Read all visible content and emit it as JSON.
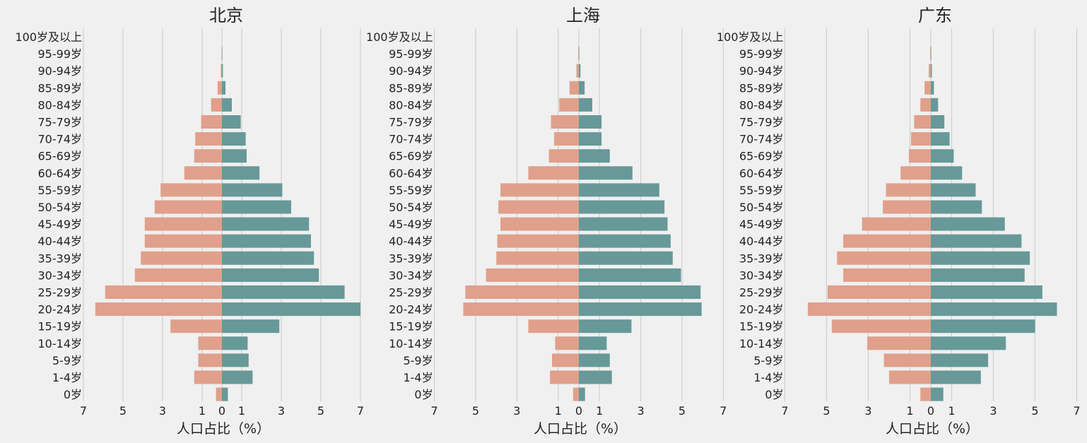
{
  "chart_data": [
    {
      "type": "bar",
      "orientation": "horizontal-diverging",
      "title": "北京",
      "xlabel": "人口占比（%）",
      "categories": [
        "0岁",
        "1-4岁",
        "5-9岁",
        "10-14岁",
        "15-19岁",
        "20-24岁",
        "25-29岁",
        "30-34岁",
        "35-39岁",
        "40-44岁",
        "45-49岁",
        "50-54岁",
        "55-59岁",
        "60-64岁",
        "65-69岁",
        "70-74岁",
        "75-79岁",
        "80-84岁",
        "85-89岁",
        "90-94岁",
        "95-99岁",
        "100岁及以上"
      ],
      "xlim": [
        -7,
        7
      ],
      "x_ticks": [
        -7,
        -5,
        -3,
        -1,
        0,
        1,
        3,
        5,
        7
      ],
      "x_tick_labels": [
        "7",
        "5",
        "3",
        "1",
        "0",
        "1",
        "3",
        "5",
        "7"
      ],
      "grid": true,
      "series": [
        {
          "color": "#e0a08b",
          "side": "left",
          "values": [
            0.3,
            1.4,
            1.2,
            1.2,
            2.6,
            6.4,
            5.9,
            4.4,
            4.1,
            3.9,
            3.9,
            3.4,
            3.1,
            1.9,
            1.4,
            1.35,
            1.05,
            0.55,
            0.22,
            0.06,
            0.02,
            0
          ]
        },
        {
          "color": "#679999",
          "side": "right",
          "values": [
            0.3,
            1.55,
            1.35,
            1.3,
            2.9,
            7.0,
            6.2,
            4.9,
            4.65,
            4.5,
            4.4,
            3.5,
            3.05,
            1.9,
            1.25,
            1.2,
            0.95,
            0.5,
            0.18,
            0.05,
            0.02,
            0
          ]
        }
      ]
    },
    {
      "type": "bar",
      "orientation": "horizontal-diverging",
      "title": "上海",
      "xlabel": "人口占比（%）",
      "categories": [
        "0岁",
        "1-4岁",
        "5-9岁",
        "10-14岁",
        "15-19岁",
        "20-24岁",
        "25-29岁",
        "30-34岁",
        "35-39岁",
        "40-44岁",
        "45-49岁",
        "50-54岁",
        "55-59岁",
        "60-64岁",
        "65-69岁",
        "70-74岁",
        "75-79岁",
        "80-84岁",
        "85-89岁",
        "90-94岁",
        "95-99岁",
        "100岁及以上"
      ],
      "xlim": [
        -7,
        7
      ],
      "x_ticks": [
        -7,
        -5,
        -3,
        -1,
        0,
        1,
        3,
        5,
        7
      ],
      "x_tick_labels": [
        "7",
        "5",
        "3",
        "1",
        "0",
        "1",
        "3",
        "5",
        "7"
      ],
      "grid": true,
      "series": [
        {
          "color": "#e0a08b",
          "side": "left",
          "values": [
            0.28,
            1.4,
            1.3,
            1.15,
            2.45,
            5.6,
            5.5,
            4.5,
            4.0,
            3.95,
            3.8,
            3.9,
            3.8,
            2.45,
            1.45,
            1.2,
            1.35,
            0.95,
            0.45,
            0.12,
            0.03,
            0
          ]
        },
        {
          "color": "#679999",
          "side": "right",
          "values": [
            0.3,
            1.6,
            1.5,
            1.35,
            2.55,
            5.95,
            5.9,
            4.95,
            4.55,
            4.45,
            4.3,
            4.15,
            3.9,
            2.6,
            1.5,
            1.1,
            1.1,
            0.65,
            0.28,
            0.08,
            0.02,
            0
          ]
        }
      ]
    },
    {
      "type": "bar",
      "orientation": "horizontal-diverging",
      "title": "广东",
      "xlabel": "人口占比（%）",
      "categories": [
        "0岁",
        "1-4岁",
        "5-9岁",
        "10-14岁",
        "15-19岁",
        "20-24岁",
        "25-29岁",
        "30-34岁",
        "35-39岁",
        "40-44岁",
        "45-49岁",
        "50-54岁",
        "55-59岁",
        "60-64岁",
        "65-69岁",
        "70-74岁",
        "75-79岁",
        "80-84岁",
        "85-89岁",
        "90-94岁",
        "95-99岁",
        "100岁及以上"
      ],
      "xlim": [
        -7,
        7
      ],
      "x_ticks": [
        -7,
        -5,
        -3,
        -1,
        0,
        1,
        3,
        5,
        7
      ],
      "x_tick_labels": [
        "7",
        "5",
        "3",
        "1",
        "0",
        "1",
        "3",
        "5",
        "7"
      ],
      "grid": true,
      "series": [
        {
          "color": "#e0a08b",
          "side": "left",
          "values": [
            0.5,
            2.0,
            2.25,
            3.05,
            4.75,
            5.9,
            4.95,
            4.2,
            4.5,
            4.2,
            3.3,
            2.3,
            2.15,
            1.45,
            1.05,
            0.95,
            0.8,
            0.5,
            0.3,
            0.1,
            0.03,
            0
          ]
        },
        {
          "color": "#679999",
          "side": "right",
          "values": [
            0.6,
            2.4,
            2.75,
            3.6,
            5.0,
            6.05,
            5.35,
            4.5,
            4.75,
            4.35,
            3.55,
            2.45,
            2.15,
            1.5,
            1.1,
            0.9,
            0.65,
            0.35,
            0.15,
            0.05,
            0.02,
            0
          ]
        }
      ]
    }
  ]
}
